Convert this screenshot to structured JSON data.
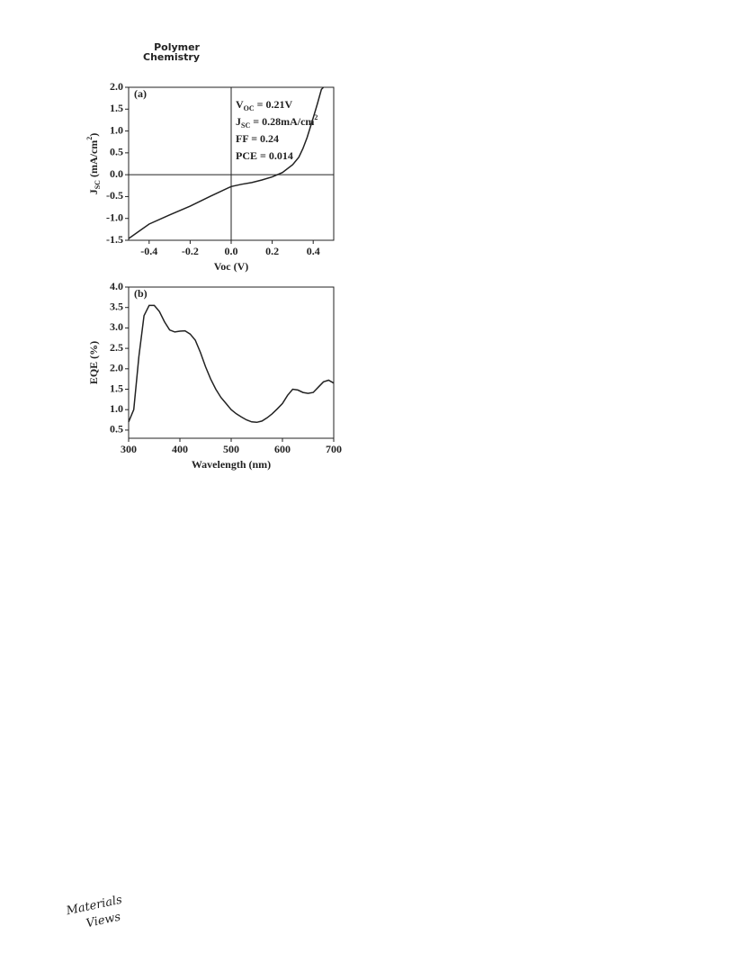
{
  "header": {
    "line1": "Polymer",
    "line2": "Chemistry"
  },
  "footer": {
    "line1": "Materials",
    "line2": "Views"
  },
  "chart_data": [
    {
      "type": "line",
      "panel": "(a)",
      "x_label": "Voc (V)",
      "y_label": [
        {
          "text": "J"
        },
        {
          "text": "SC",
          "shift": "sub"
        },
        {
          "text": " (mA/cm"
        },
        {
          "text": "2",
          "shift": "super"
        },
        {
          "text": ")"
        }
      ],
      "annotations": [
        [
          {
            "text": "V"
          },
          {
            "text": "OC",
            "shift": "sub"
          },
          {
            "text": " = 0.21V"
          }
        ],
        [
          {
            "text": "J"
          },
          {
            "text": "SC",
            "shift": "sub"
          },
          {
            "text": " = 0.28mA/cm"
          },
          {
            "text": "2",
            "shift": "super"
          }
        ],
        [
          {
            "text": "FF = 0.24"
          }
        ],
        [
          {
            "text": "PCE = 0.014"
          }
        ]
      ],
      "color": "#222222",
      "x": [
        -0.5,
        -0.4,
        -0.3,
        -0.2,
        -0.1,
        0.0,
        0.05,
        0.1,
        0.15,
        0.2,
        0.25,
        0.3,
        0.33,
        0.35,
        0.37,
        0.4,
        0.42,
        0.44,
        0.45
      ],
      "values": [
        -1.46,
        -1.13,
        -0.92,
        -0.72,
        -0.49,
        -0.27,
        -0.22,
        -0.18,
        -0.12,
        -0.05,
        0.05,
        0.23,
        0.4,
        0.6,
        0.85,
        1.3,
        1.62,
        1.95,
        2.0
      ],
      "xlim": [
        -0.5,
        0.5
      ],
      "ylim": [
        -1.5,
        2.0
      ],
      "xticks": [
        -0.4,
        -0.2,
        {
          "value": 0,
          "label": "0.0"
        },
        0.2,
        0.4
      ],
      "yticks": [
        {
          "value": 2,
          "label": "2.0"
        },
        1.5,
        {
          "value": 1,
          "label": "1.0"
        },
        0.5,
        {
          "value": 0,
          "label": "0.0"
        },
        -0.5,
        {
          "value": -1,
          "label": "-1.0"
        },
        -1.5
      ]
    },
    {
      "type": "line",
      "panel": "(b)",
      "x_label": "Wavelength (nm)",
      "y_label": [
        {
          "text": "EQE (%)"
        }
      ],
      "color": "#222222",
      "x": [
        300,
        310,
        320,
        330,
        340,
        350,
        360,
        370,
        380,
        390,
        400,
        410,
        420,
        430,
        440,
        450,
        460,
        470,
        480,
        490,
        500,
        510,
        520,
        530,
        540,
        550,
        560,
        570,
        580,
        590,
        600,
        610,
        620,
        630,
        640,
        650,
        660,
        670,
        680,
        690,
        700
      ],
      "values": [
        0.7,
        1.0,
        2.3,
        3.3,
        3.55,
        3.55,
        3.4,
        3.15,
        2.95,
        2.9,
        2.92,
        2.93,
        2.85,
        2.7,
        2.4,
        2.05,
        1.75,
        1.5,
        1.3,
        1.15,
        1.0,
        0.9,
        0.82,
        0.75,
        0.7,
        0.69,
        0.72,
        0.8,
        0.9,
        1.02,
        1.15,
        1.35,
        1.5,
        1.48,
        1.42,
        1.4,
        1.42,
        1.55,
        1.68,
        1.72,
        1.65
      ],
      "xlim": [
        300,
        700
      ],
      "ylim": [
        0.3,
        4.0
      ],
      "xticks": [
        300,
        400,
        500,
        600,
        700
      ],
      "yticks": [
        {
          "value": 4,
          "label": "4.0"
        },
        3.5,
        {
          "value": 3,
          "label": "3.0"
        },
        2.5,
        {
          "value": 2,
          "label": "2.0"
        },
        1.5,
        {
          "value": 1,
          "label": "1.0"
        },
        0.5
      ]
    }
  ]
}
